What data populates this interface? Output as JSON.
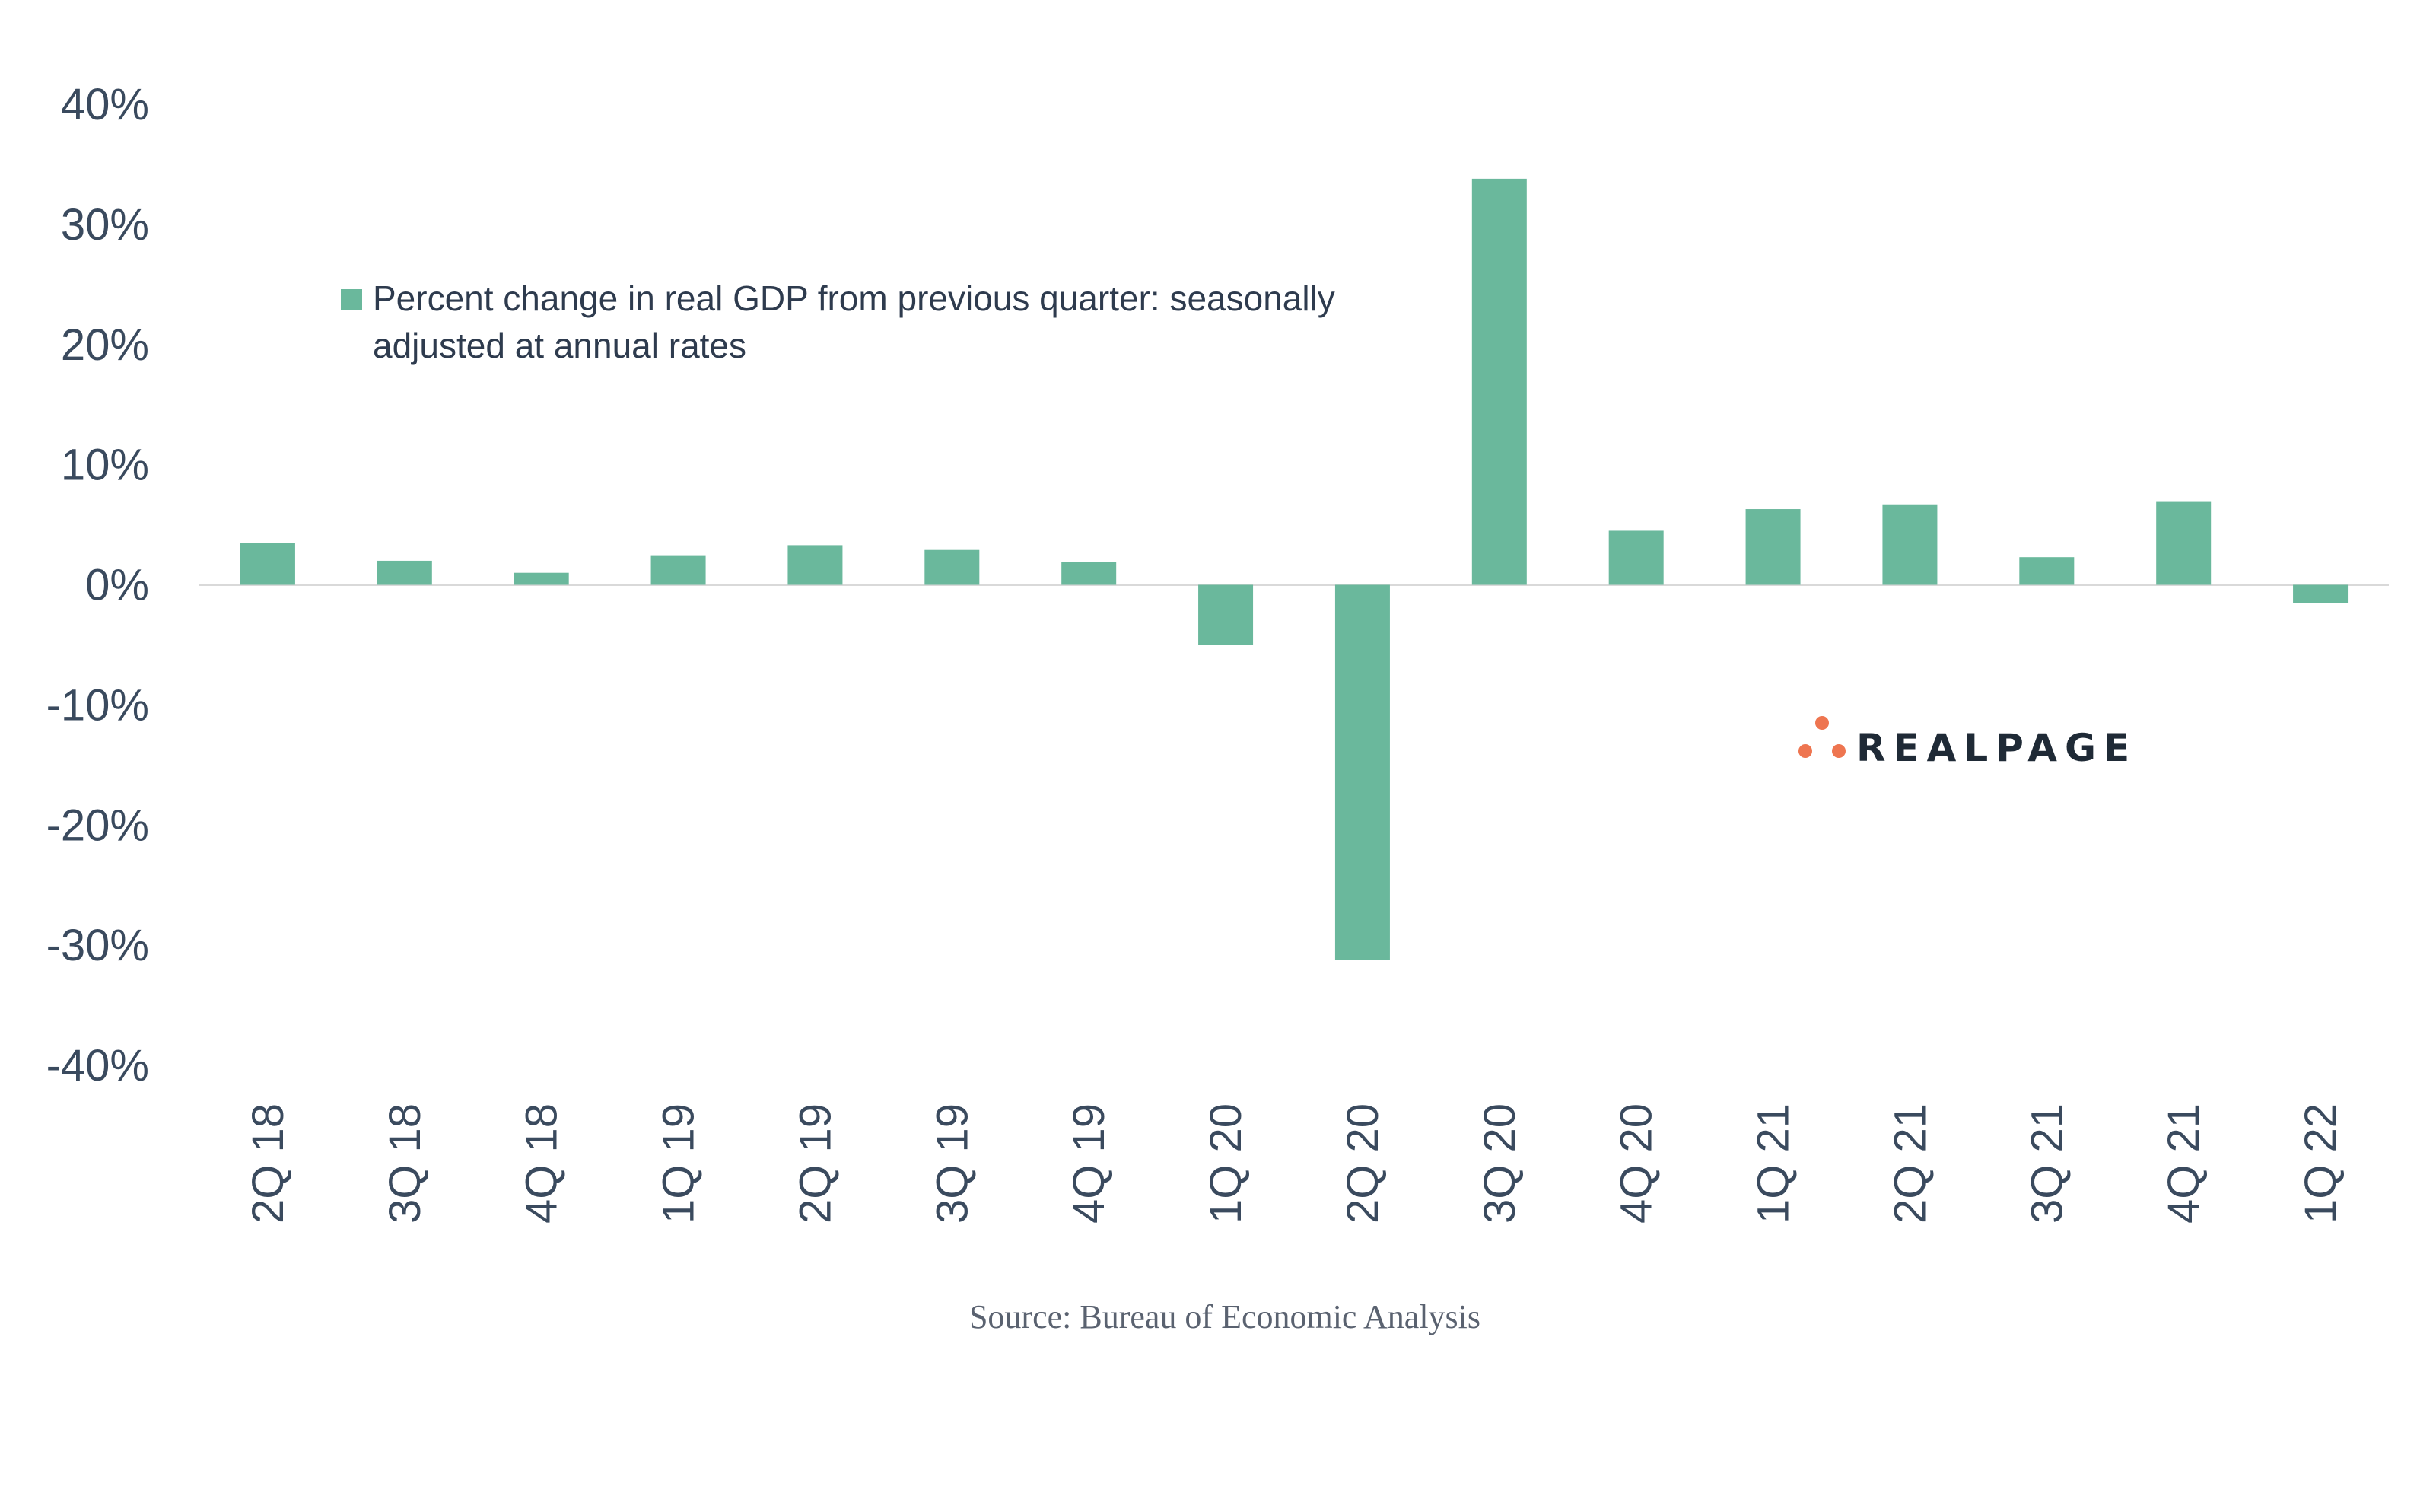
{
  "chart_data": {
    "type": "bar",
    "categories": [
      "2Q 18",
      "3Q 18",
      "4Q 18",
      "1Q 19",
      "2Q 19",
      "3Q 19",
      "4Q 19",
      "1Q 20",
      "2Q 20",
      "3Q 20",
      "4Q 20",
      "1Q 21",
      "2Q 21",
      "3Q 21",
      "4Q 21",
      "1Q 22"
    ],
    "series": [
      {
        "name": "Percent change in real GDP from previous quarter: seasonally adjusted at annual rates",
        "values": [
          3.5,
          2.0,
          1.0,
          2.4,
          3.3,
          2.9,
          1.9,
          -5.0,
          -31.2,
          33.8,
          4.5,
          6.3,
          6.7,
          2.3,
          6.9,
          -1.5
        ]
      }
    ],
    "legend": {
      "line1": "Percent change in real GDP from previous quarter: seasonally",
      "line2": "adjusted at annual rates",
      "placement": "top-left"
    },
    "ylim": [
      -40,
      40
    ],
    "yticks": [
      40,
      30,
      20,
      10,
      0,
      -10,
      -20,
      -30,
      -40
    ],
    "ytick_labels": [
      "40%",
      "30%",
      "20%",
      "10%",
      "0%",
      "-10%",
      "-20%",
      "-30%",
      "-40%"
    ],
    "xlabel": "",
    "ylabel": "",
    "source": "Source: Bureau of Economic Analysis",
    "logo": "REALPAGE",
    "colors": {
      "bar": "#6ab89c",
      "axis": "#d9d9d9",
      "text": "#3a4a5e",
      "logo_dots": "#ee7550"
    }
  }
}
